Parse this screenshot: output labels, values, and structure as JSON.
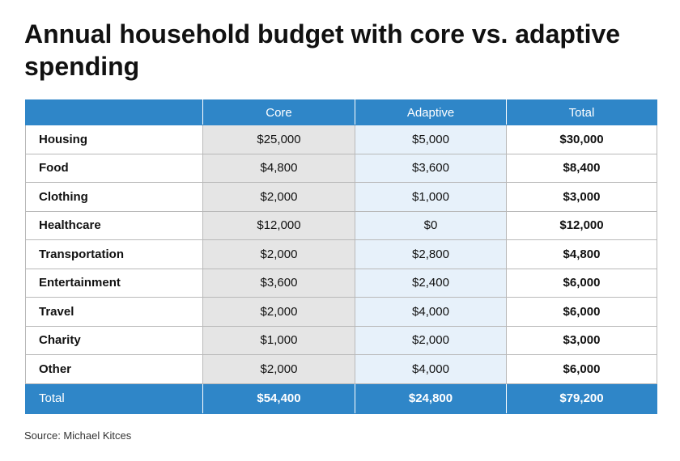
{
  "title": "Annual household budget with core vs. adaptive spending",
  "table": {
    "columns": [
      "",
      "Core",
      "Adaptive",
      "Total"
    ],
    "rows": [
      {
        "category": "Housing",
        "core": "$25,000",
        "adaptive": "$5,000",
        "total": "$30,000"
      },
      {
        "category": "Food",
        "core": "$4,800",
        "adaptive": "$3,600",
        "total": "$8,400"
      },
      {
        "category": "Clothing",
        "core": "$2,000",
        "adaptive": "$1,000",
        "total": "$3,000"
      },
      {
        "category": "Healthcare",
        "core": "$12,000",
        "adaptive": "$0",
        "total": "$12,000"
      },
      {
        "category": "Transportation",
        "core": "$2,000",
        "adaptive": "$2,800",
        "total": "$4,800"
      },
      {
        "category": "Entertainment",
        "core": "$3,600",
        "adaptive": "$2,400",
        "total": "$6,000"
      },
      {
        "category": "Travel",
        "core": "$2,000",
        "adaptive": "$4,000",
        "total": "$6,000"
      },
      {
        "category": "Charity",
        "core": "$1,000",
        "adaptive": "$2,000",
        "total": "$3,000"
      },
      {
        "category": "Other",
        "core": "$2,000",
        "adaptive": "$4,000",
        "total": "$6,000"
      }
    ],
    "footer": {
      "category": "Total",
      "core": "$54,400",
      "adaptive": "$24,800",
      "total": "$79,200"
    }
  },
  "source": "Source: Michael Kitces",
  "colors": {
    "header_blue": "#2f86c8",
    "core_fill": "#e5e5e5",
    "adaptive_fill": "#e7f1fa"
  }
}
